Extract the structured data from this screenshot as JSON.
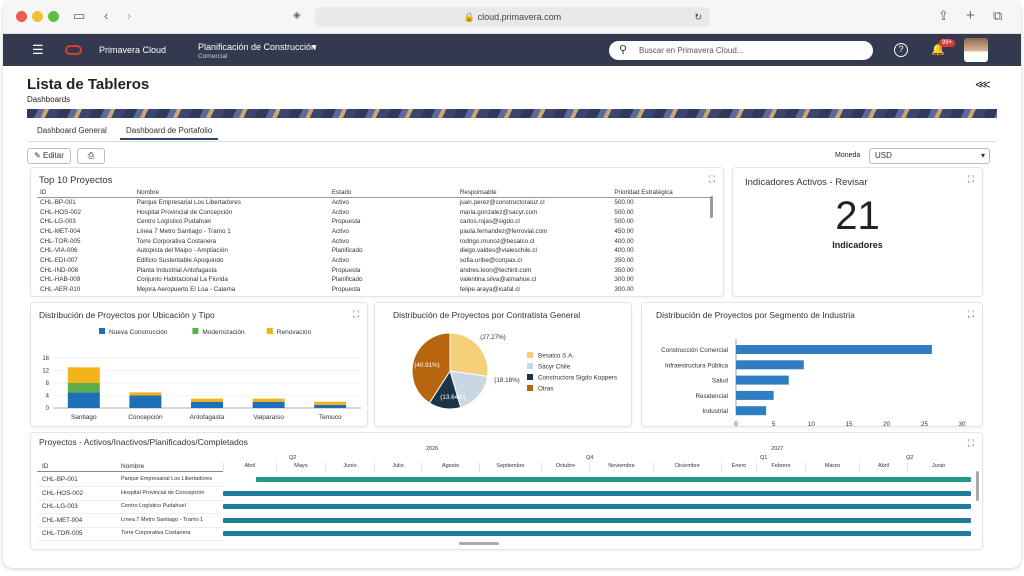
{
  "browser": {
    "url": "cloud.primavera.com"
  },
  "app": {
    "brand": "Primavera Cloud",
    "workspace": "Planificación de Construcción",
    "workspace_sub": "Comercial",
    "search_placeholder": "Buscar en Primavera Cloud...",
    "notif_badge": "99+"
  },
  "page": {
    "title": "Lista de Tableros",
    "subtitle": "Dashboards"
  },
  "tabs": [
    "Dashboard General",
    "Dashboard de Portafolio"
  ],
  "toolbar": {
    "edit": "Editar",
    "currency_label": "Moneda",
    "currency_value": "USD"
  },
  "top10": {
    "title": "Top 10 Proyectos",
    "headers": [
      "ID",
      "Nombre",
      "Estado",
      "Responsable",
      "Prioridad Estratégica"
    ],
    "rows": [
      [
        "CHL-BP-001",
        "Parque Empresarial Los Libertadores",
        "Activo",
        "juan.perez@constructoraluz.cl",
        "500.00"
      ],
      [
        "CHL-HOS-002",
        "Hospital Provincial de Concepción",
        "Activo",
        "maria.gonzalez@sacyr.com",
        "500.00"
      ],
      [
        "CHL-LG-003",
        "Centro Logístico Pudahuel",
        "Propuesta",
        "carlos.rojas@sigdo.cl",
        "500.00"
      ],
      [
        "CHL-MET-004",
        "Línea 7 Metro Santiago - Tramo 1",
        "Activo",
        "paula.fernandez@ferrovial.com",
        "450.00"
      ],
      [
        "CHL-TOR-005",
        "Torre Corporativa Costanera",
        "Activo",
        "rodrigo.munoz@besalco.cl",
        "400.00"
      ],
      [
        "CHL-VIA-006",
        "Autopista del Maipo - Ampliación",
        "Planificado",
        "diego.valdes@vialeschile.cl",
        "400.00"
      ],
      [
        "CHL-EDI-007",
        "Edificio Sustentable Apoquindo",
        "Activo",
        "sofia.uribe@conpax.cl",
        "350.00"
      ],
      [
        "CHL-IND-008",
        "Planta Industrial Antofagasta",
        "Propuesta",
        "andres.leon@techint.com",
        "350.00"
      ],
      [
        "CHL-HAB-009",
        "Conjunto Habitacional La Florida",
        "Planificado",
        "valentina.silva@almahue.cl",
        "300.00"
      ],
      [
        "CHL-AER-010",
        "Mejora Aeropuerto El Loa - Calama",
        "Propuesta",
        "felipe.araya@icafal.cl",
        "300.00"
      ]
    ]
  },
  "indicators": {
    "title": "Indicadores Activos - Revisar",
    "value": "21",
    "label": "Indicadores"
  },
  "charts": {
    "loc_title": "Distribución de Proyectos por Ubicación y Tipo",
    "pie_title": "Distribución de Proyectos por Contratista General",
    "ind_title": "Distribución de Proyectos por Segmento de Industria"
  },
  "chart_data": [
    {
      "type": "bar",
      "stacked": true,
      "categories": [
        "Santiago",
        "Concepción",
        "Antofagasta",
        "Valparaíso",
        "Temuco"
      ],
      "series": [
        {
          "name": "Nueva Construcción",
          "color": "#1f6fb8",
          "values": [
            5,
            4,
            2,
            2,
            1
          ]
        },
        {
          "name": "Modernización",
          "color": "#5cae4a",
          "values": [
            3,
            0,
            0,
            0,
            0
          ]
        },
        {
          "name": "Renovación",
          "color": "#f2b418",
          "values": [
            5,
            1,
            1,
            1,
            1
          ]
        }
      ],
      "yticks": [
        0,
        4,
        8,
        12,
        16
      ],
      "ylim": [
        0,
        16
      ],
      "legend": "top"
    },
    {
      "type": "pie",
      "slices": [
        {
          "name": "Besalco S.A.",
          "value": 27.27,
          "label": "(27.27%)",
          "color": "#f5cf7a"
        },
        {
          "name": "Sacyr Chile",
          "value": 18.18,
          "label": "(18.18%)",
          "color": "#c9d6e3"
        },
        {
          "name": "Constructora Sigdo Koppers",
          "value": 13.64,
          "label": "(13.64%)",
          "color": "#1b3448"
        },
        {
          "name": "Otras",
          "value": 40.91,
          "label": "(40.91%)",
          "color": "#b8650f"
        }
      ],
      "legend": "right"
    },
    {
      "type": "bar",
      "orientation": "horizontal",
      "categories": [
        "Construcción Comercial",
        "Infraestructura Pública",
        "Salud",
        "Residencial",
        "Industrial"
      ],
      "values": [
        26,
        9,
        7,
        5,
        4
      ],
      "xticks": [
        0,
        5,
        10,
        15,
        20,
        25,
        30
      ],
      "xlim": [
        0,
        30
      ],
      "color": "#2f7ec1"
    }
  ],
  "gantt": {
    "title": "Proyectos - Activos/Inactivos/Planificados/Completados",
    "headers": [
      "ID",
      "Nombre"
    ],
    "years": [
      "2026",
      "2027"
    ],
    "quarters": [
      "Q2",
      "Q4",
      "Q1",
      "Q2"
    ],
    "months": [
      "Abril",
      "Mayo",
      "Junio",
      "Julio",
      "Agosto",
      "Septiembre",
      "Octubre",
      "Noviembre",
      "Diciembre",
      "Enero",
      "Febrero",
      "Marzo",
      "Abril",
      "Junio"
    ],
    "rows": [
      [
        "CHL-BP-001",
        "Parque Empresarial Los Libertadores"
      ],
      [
        "CHL-HOS-002",
        "Hospital Provincial de Concepción"
      ],
      [
        "CHL-LG-003",
        "Centro Logístico Pudahuel"
      ],
      [
        "CHL-MET-004",
        "Línea 7 Metro Santiago - Tramo 1"
      ],
      [
        "CHL-TOR-005",
        "Torre Corporativa Costanera"
      ]
    ]
  }
}
